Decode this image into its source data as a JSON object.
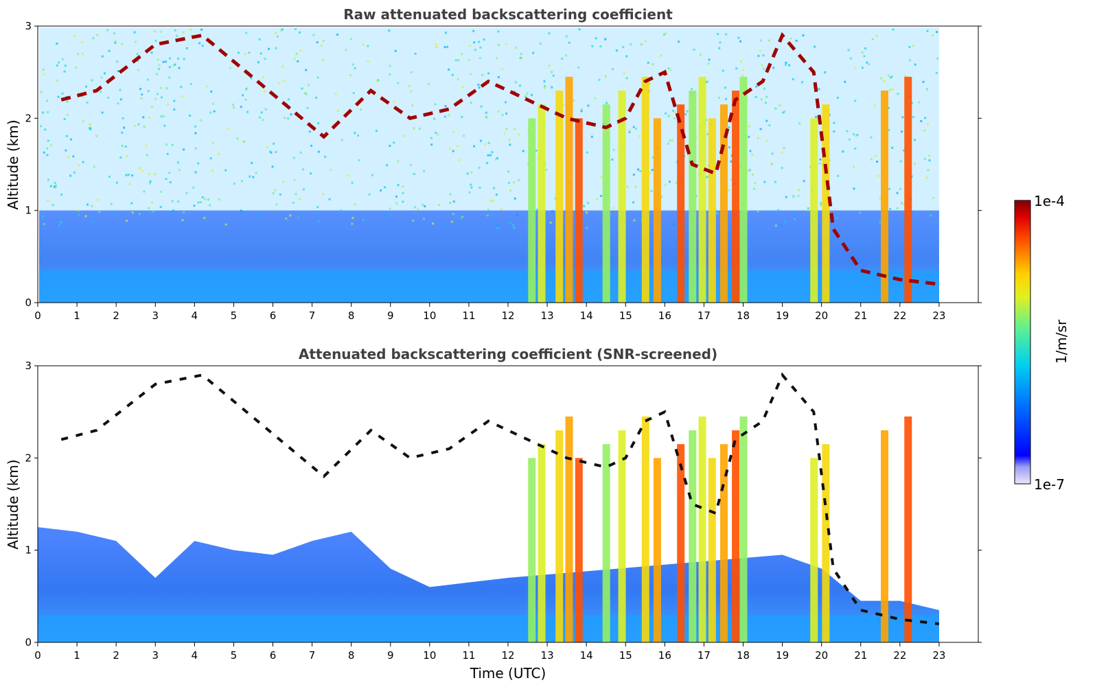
{
  "chart_data": [
    {
      "type": "heatmap",
      "title": "Raw attenuated backscattering coefficient",
      "xlabel": "",
      "ylabel": "Altitude (km)",
      "xlim": [
        0,
        24
      ],
      "ylim": [
        0,
        3
      ],
      "xticks": [
        "0",
        "1",
        "2",
        "3",
        "4",
        "5",
        "6",
        "7",
        "8",
        "9",
        "10",
        "11",
        "12",
        "13",
        "14",
        "15",
        "16",
        "17",
        "18",
        "19",
        "20",
        "21",
        "22",
        "23"
      ],
      "yticks": [
        "0",
        "1",
        "2",
        "3"
      ],
      "data_extent_hours": [
        0,
        23
      ],
      "cloud_base_km": [
        [
          0.6,
          2.2
        ],
        [
          1.5,
          2.3
        ],
        [
          3.0,
          2.8
        ],
        [
          4.2,
          2.9
        ],
        [
          7.3,
          1.8
        ],
        [
          8.5,
          2.3
        ],
        [
          9.5,
          2.0
        ],
        [
          10.5,
          2.1
        ],
        [
          11.5,
          2.4
        ],
        [
          12.5,
          2.2
        ],
        [
          13.0,
          2.1
        ],
        [
          13.5,
          2.0
        ],
        [
          14.5,
          1.9
        ],
        [
          15.0,
          2.0
        ],
        [
          15.5,
          2.4
        ],
        [
          16.0,
          2.5
        ],
        [
          16.7,
          1.5
        ],
        [
          17.3,
          1.4
        ],
        [
          17.8,
          2.2
        ],
        [
          18.5,
          2.4
        ],
        [
          19.0,
          2.9
        ],
        [
          19.8,
          2.5
        ],
        [
          20.3,
          0.8
        ],
        [
          21.0,
          0.35
        ],
        [
          22.0,
          0.25
        ],
        [
          23.0,
          0.2
        ]
      ]
    },
    {
      "type": "heatmap",
      "title": "Attenuated backscattering coefficient (SNR-screened)",
      "xlabel": "Time (UTC)",
      "ylabel": "Altitude (km)",
      "xlim": [
        0,
        24
      ],
      "ylim": [
        0,
        3
      ],
      "xticks": [
        "0",
        "1",
        "2",
        "3",
        "4",
        "5",
        "6",
        "7",
        "8",
        "9",
        "10",
        "11",
        "12",
        "13",
        "14",
        "15",
        "16",
        "17",
        "18",
        "19",
        "20",
        "21",
        "22",
        "23"
      ],
      "yticks": [
        "0",
        "1",
        "2",
        "3"
      ],
      "data_extent_hours": [
        0,
        23
      ],
      "boundary_layer_top_km": [
        [
          0,
          1.25
        ],
        [
          1,
          1.2
        ],
        [
          2,
          1.1
        ],
        [
          3,
          0.7
        ],
        [
          4,
          1.1
        ],
        [
          5,
          1.0
        ],
        [
          6,
          0.95
        ],
        [
          7,
          1.1
        ],
        [
          8,
          1.2
        ],
        [
          9,
          0.8
        ],
        [
          10,
          0.6
        ],
        [
          11,
          0.65
        ],
        [
          12,
          0.7
        ],
        [
          19,
          0.95
        ],
        [
          20,
          0.8
        ],
        [
          21,
          0.45
        ],
        [
          22,
          0.45
        ],
        [
          23,
          0.35
        ]
      ]
    }
  ],
  "colorbar": {
    "label": "1/m/sr",
    "max_label": "1e-4",
    "min_label": "1e-7",
    "scale": "log",
    "colormap": "jet"
  }
}
